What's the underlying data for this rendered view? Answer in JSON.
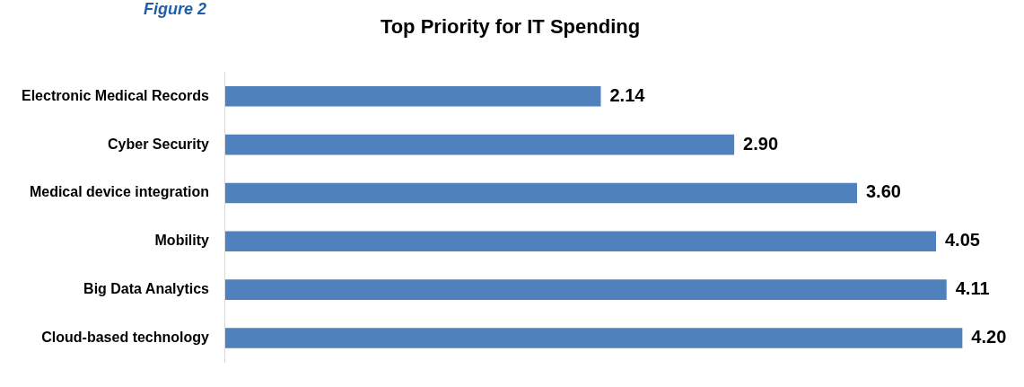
{
  "chart_data": {
    "type": "bar",
    "orientation": "horizontal",
    "title": "Top Priority for IT Spending",
    "annotations": [
      "Figure 2"
    ],
    "categories": [
      "Electronic Medical Records",
      "Cyber Security",
      "Medical device integration",
      "Mobility",
      "Big Data Analytics",
      "Cloud-based technology"
    ],
    "values": [
      2.14,
      2.9,
      3.6,
      4.05,
      4.11,
      4.2
    ],
    "color": "#4f81bd",
    "value_labels": [
      "2.14",
      "2.90",
      "3.60",
      "4.05",
      "4.11",
      "4.20"
    ],
    "tick_labels": "y"
  }
}
